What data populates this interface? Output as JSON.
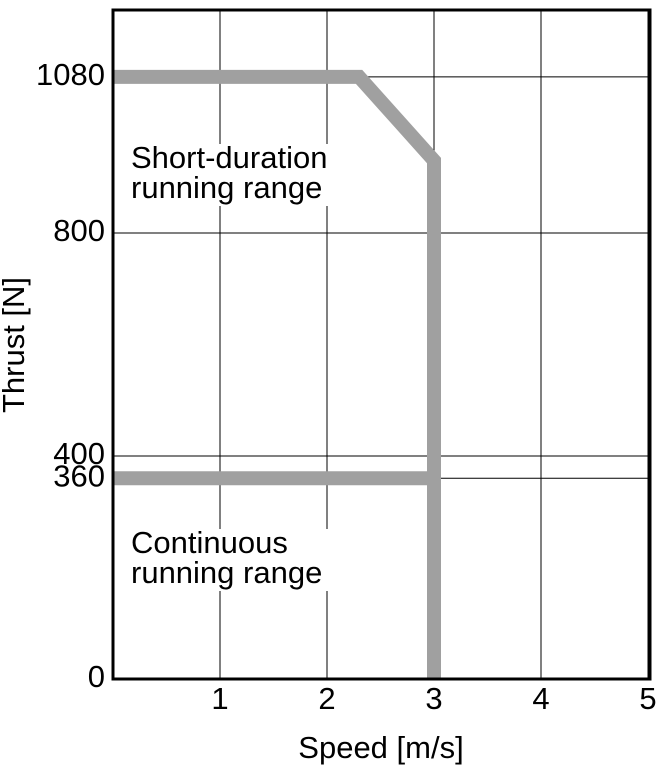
{
  "chart_data": {
    "type": "line",
    "xlabel": "Speed [m/s]",
    "ylabel": "Thrust [N]",
    "xlim": [
      0,
      5
    ],
    "ylim": [
      0,
      1200
    ],
    "xticks": [
      1,
      2,
      3,
      4,
      5
    ],
    "yticks": [
      0,
      360,
      400,
      800,
      1080
    ],
    "grid": true,
    "series": [
      {
        "color": "#a0a0a0",
        "x": [
          0,
          2.3,
          3,
          3
        ],
        "values": [
          1080,
          1080,
          930,
          0
        ]
      },
      {
        "color": "#a0a0a0",
        "x": [
          0,
          3
        ],
        "values": [
          360,
          360
        ]
      }
    ],
    "annotations": [
      {
        "lines": [
          "Short-duration",
          "running range"
        ]
      },
      {
        "lines": [
          "Continuous",
          "running range"
        ]
      }
    ]
  }
}
